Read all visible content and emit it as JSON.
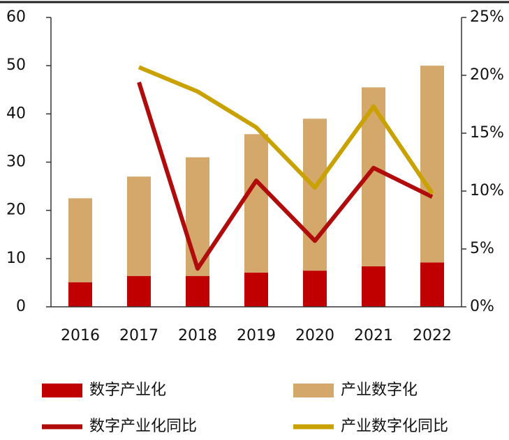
{
  "chart_data": {
    "type": "bar",
    "stacked": true,
    "categories": [
      "2016",
      "2017",
      "2018",
      "2019",
      "2020",
      "2021",
      "2022"
    ],
    "series": [
      {
        "name": "数字产业化",
        "type": "bar",
        "color": "#c00000",
        "values": [
          5.1,
          6.4,
          6.4,
          7.1,
          7.5,
          8.4,
          9.2
        ]
      },
      {
        "name": "产业数字化",
        "type": "bar",
        "color": "#d4a76a",
        "values": [
          17.4,
          20.6,
          24.6,
          28.7,
          31.5,
          37.1,
          40.8
        ]
      },
      {
        "name": "数字产业化同比",
        "type": "line",
        "axis": "y2",
        "color": "#b00c0c",
        "values": [
          null,
          19.4,
          3.3,
          10.9,
          5.7,
          12,
          9.5
        ]
      },
      {
        "name": "产业数字化同比",
        "type": "line",
        "axis": "y2",
        "color": "#c9a100",
        "values": [
          null,
          20.7,
          18.6,
          15.5,
          10.3,
          17.3,
          9.8
        ]
      }
    ],
    "ylim": [
      0,
      60
    ],
    "yticks": [
      0,
      10,
      20,
      30,
      40,
      50,
      60
    ],
    "y2lim": [
      0,
      25
    ],
    "y2ticks": [
      {
        "value": 0,
        "label": "0%"
      },
      {
        "value": 5,
        "label": "5%"
      },
      {
        "value": 10,
        "label": "10%"
      },
      {
        "value": 15,
        "label": "15%"
      },
      {
        "value": 20,
        "label": "20%"
      },
      {
        "value": 25,
        "label": "25%"
      }
    ]
  }
}
